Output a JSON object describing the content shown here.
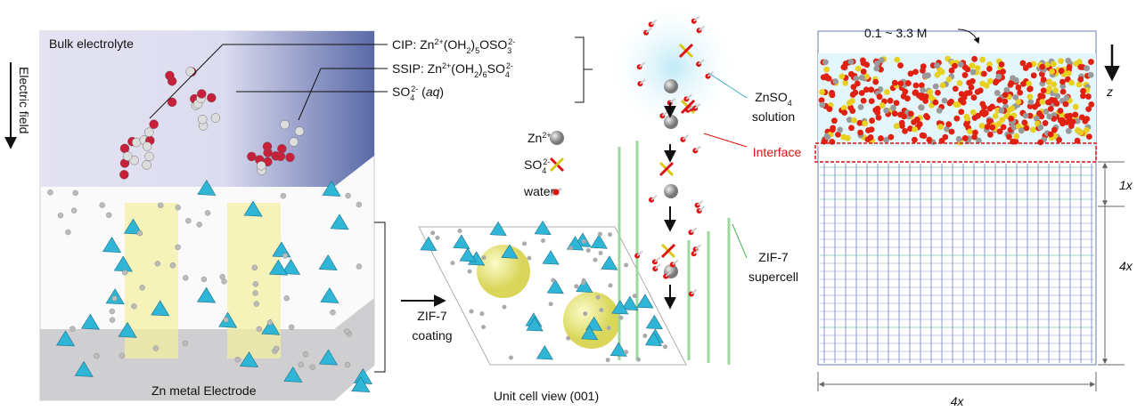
{
  "left_panel": {
    "bulk_label": "Bulk electrolyte",
    "field_label": "Electric field",
    "electrode_label": "Zn metal Electrode"
  },
  "species_callouts": {
    "cip": [
      "CIP: Zn",
      "2+",
      "(OH",
      "2",
      ")",
      "5",
      "OSO",
      "3",
      "2-"
    ],
    "ssip": [
      "SSIP: Zn",
      "2+",
      "(OH",
      "2",
      ")",
      "6",
      "SO",
      "4",
      "2-"
    ],
    "sulfate": [
      "SO",
      "4",
      "2-",
      " (",
      "aq",
      ")"
    ]
  },
  "legend": {
    "zn": [
      "Zn",
      "2+"
    ],
    "so4": [
      "SO",
      "4",
      "2-"
    ],
    "water": "water"
  },
  "coating_label": [
    "ZIF-7",
    "coating"
  ],
  "unit_cell_label": "Unit cell view (001)",
  "md_panel": {
    "concentration": "0.1 ~ 3.3 M",
    "axis": "z",
    "solution_label": {
      "line1": [
        "ZnSO",
        "4"
      ],
      "line2": "solution"
    },
    "interface": "Interface",
    "supercell_label": [
      "ZIF-7",
      "supercell"
    ],
    "dims": {
      "layer": "1x",
      "height": "4x",
      "width": "4x"
    }
  }
}
